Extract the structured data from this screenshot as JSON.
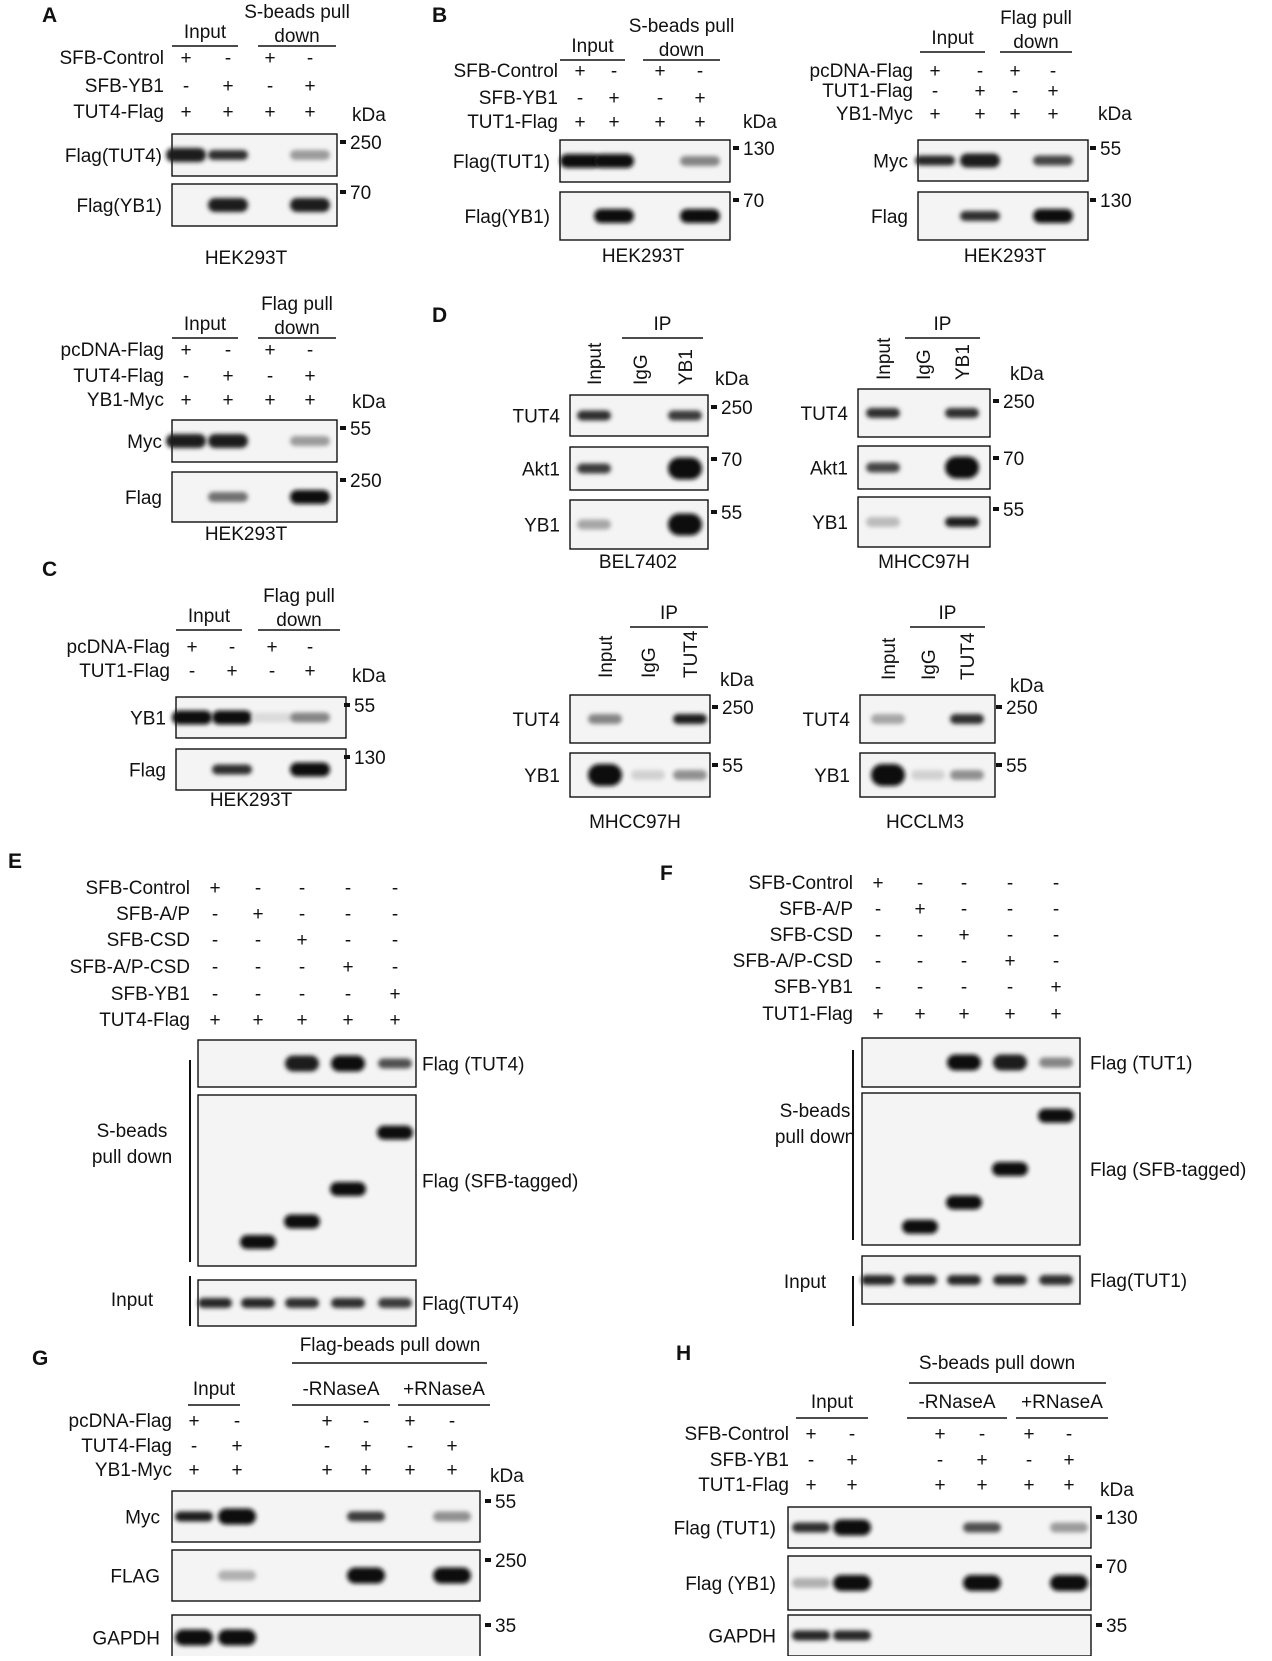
{
  "panels": [
    {
      "id": "A1",
      "letter": "A",
      "header_pos": "grouped",
      "groups": [
        "Input",
        "S-beads pull down"
      ],
      "rows": [
        {
          "label": "SFB-Control",
          "signs": [
            "+",
            "-",
            "+",
            "-"
          ]
        },
        {
          "label": "SFB-YB1",
          "signs": [
            "-",
            "+",
            "-",
            "+"
          ]
        },
        {
          "label": "TUT4-Flag",
          "signs": [
            "+",
            "+",
            "+",
            "+"
          ]
        }
      ],
      "kda": "kDa",
      "blots": [
        {
          "label": "Flag(TUT4)",
          "marker": "250",
          "bands": [
            0.95,
            0.85,
            0,
            0.35
          ]
        },
        {
          "label": "Flag(YB1)",
          "marker": "70",
          "bands": [
            0,
            0.95,
            0,
            0.95
          ]
        }
      ],
      "cell_line": "HEK293T"
    },
    {
      "id": "B1",
      "letter": "B",
      "header_pos": "grouped",
      "groups": [
        "Input",
        "S-beads pull down"
      ],
      "rows": [
        {
          "label": "SFB-Control",
          "signs": [
            "+",
            "-",
            "+",
            "-"
          ]
        },
        {
          "label": "SFB-YB1",
          "signs": [
            "-",
            "+",
            "-",
            "+"
          ]
        },
        {
          "label": "TUT1-Flag",
          "signs": [
            "+",
            "+",
            "+",
            "+"
          ]
        }
      ],
      "kda": "kDa",
      "blots": [
        {
          "label": "Flag(TUT1)",
          "marker": "130",
          "bands": [
            1,
            1,
            0,
            0.45
          ]
        },
        {
          "label": "Flag(YB1)",
          "marker": "70",
          "bands": [
            0,
            1,
            0,
            1
          ]
        }
      ],
      "cell_line": "HEK293T"
    },
    {
      "id": "B2",
      "letter": "",
      "header_pos": "grouped",
      "groups": [
        "Input",
        "Flag pull down"
      ],
      "rows": [
        {
          "label": "pcDNA-Flag",
          "signs": [
            "+",
            "-",
            "+",
            "-"
          ]
        },
        {
          "label": "TUT1-Flag",
          "signs": [
            "-",
            "+",
            "-",
            "+"
          ]
        },
        {
          "label": "YB1-Myc",
          "signs": [
            "+",
            "+",
            "+",
            "+"
          ]
        }
      ],
      "kda": "kDa",
      "blots": [
        {
          "label": "Myc",
          "marker": "55",
          "bands": [
            0.9,
            0.95,
            0,
            0.75
          ]
        },
        {
          "label": "Flag",
          "marker": "130",
          "bands": [
            0,
            0.85,
            0,
            1
          ]
        }
      ],
      "cell_line": "HEK293T"
    },
    {
      "id": "A2",
      "letter": "",
      "header_pos": "grouped",
      "groups": [
        "Input",
        "Flag pull down"
      ],
      "rows": [
        {
          "label": "pcDNA-Flag",
          "signs": [
            "+",
            "-",
            "+",
            "-"
          ]
        },
        {
          "label": "TUT4-Flag",
          "signs": [
            "-",
            "+",
            "-",
            "+"
          ]
        },
        {
          "label": "YB1-Myc",
          "signs": [
            "+",
            "+",
            "+",
            "+"
          ]
        }
      ],
      "kda": "kDa",
      "blots": [
        {
          "label": "Myc",
          "marker": "55",
          "bands": [
            0.95,
            0.95,
            0,
            0.35
          ]
        },
        {
          "label": "Flag",
          "marker": "250",
          "bands": [
            0,
            0.55,
            0,
            1
          ]
        }
      ],
      "cell_line": "HEK293T"
    },
    {
      "id": "C",
      "letter": "C",
      "header_pos": "grouped",
      "groups": [
        "Input",
        "Flag pull down"
      ],
      "rows": [
        {
          "label": "pcDNA-Flag",
          "signs": [
            "+",
            "-",
            "+",
            "-"
          ]
        },
        {
          "label": "TUT1-Flag",
          "signs": [
            "-",
            "+",
            "-",
            "+"
          ]
        }
      ],
      "kda": "kDa",
      "blots": [
        {
          "label": "YB1",
          "marker": "55",
          "bands": [
            1,
            1,
            0.05,
            0.45
          ]
        },
        {
          "label": "Flag",
          "marker": "130",
          "bands": [
            0,
            0.85,
            0,
            1
          ]
        }
      ],
      "cell_line": "HEK293T"
    },
    {
      "id": "D1",
      "letter": "D",
      "header_pos": "ip",
      "ip_label": "IP",
      "lanes": [
        "Input",
        "IgG",
        "YB1"
      ],
      "kda": "kDa",
      "blots": [
        {
          "label": "TUT4",
          "marker": "250",
          "bands": [
            0.85,
            0,
            0.8
          ]
        },
        {
          "label": "Akt1",
          "marker": "70",
          "bands": [
            0.8,
            0,
            1
          ]
        },
        {
          "label": "YB1",
          "marker": "55",
          "bands": [
            0.3,
            0,
            1
          ]
        }
      ],
      "cell_line": "BEL7402"
    },
    {
      "id": "D2",
      "letter": "",
      "header_pos": "ip",
      "ip_label": "IP",
      "lanes": [
        "Input",
        "IgG",
        "YB1"
      ],
      "kda": "kDa",
      "blots": [
        {
          "label": "TUT4",
          "marker": "250",
          "bands": [
            0.85,
            0,
            0.85
          ]
        },
        {
          "label": "Akt1",
          "marker": "70",
          "bands": [
            0.75,
            0,
            1
          ]
        },
        {
          "label": "YB1",
          "marker": "55",
          "bands": [
            0.2,
            0,
            0.95
          ]
        }
      ],
      "cell_line": "MHCC97H"
    },
    {
      "id": "D3",
      "letter": "",
      "header_pos": "ip",
      "ip_label": "IP",
      "lanes": [
        "Input",
        "IgG",
        "TUT4"
      ],
      "kda": "kDa",
      "blots": [
        {
          "label": "TUT4",
          "marker": "250",
          "bands": [
            0.45,
            0,
            0.95
          ]
        },
        {
          "label": "YB1",
          "marker": "55",
          "bands": [
            1,
            0.1,
            0.4
          ]
        }
      ],
      "cell_line": "MHCC97H"
    },
    {
      "id": "D4",
      "letter": "",
      "header_pos": "ip",
      "ip_label": "IP",
      "lanes": [
        "Input",
        "IgG",
        "TUT4"
      ],
      "kda": "kDa",
      "blots": [
        {
          "label": "TUT4",
          "marker": "250",
          "bands": [
            0.3,
            0,
            0.85
          ]
        },
        {
          "label": "YB1",
          "marker": "55",
          "bands": [
            1,
            0.1,
            0.4
          ]
        }
      ],
      "cell_line": "HCCLM3"
    },
    {
      "id": "E",
      "letter": "E",
      "rows": [
        {
          "label": "SFB-Control",
          "signs": [
            "+",
            "-",
            "-",
            "-",
            "-"
          ]
        },
        {
          "label": "SFB-A/P",
          "signs": [
            "-",
            "+",
            "-",
            "-",
            "-"
          ]
        },
        {
          "label": "SFB-CSD",
          "signs": [
            "-",
            "-",
            "+",
            "-",
            "-"
          ]
        },
        {
          "label": "SFB-A/P-CSD",
          "signs": [
            "-",
            "-",
            "-",
            "+",
            "-"
          ]
        },
        {
          "label": "SFB-YB1",
          "signs": [
            "-",
            "-",
            "-",
            "-",
            "+"
          ]
        },
        {
          "label": "TUT4-Flag",
          "signs": [
            "+",
            "+",
            "+",
            "+",
            "+"
          ]
        }
      ],
      "pulldown_label": [
        "S-beads",
        "pull down"
      ],
      "input_label": "Input",
      "blots": [
        {
          "label": "Flag (TUT4)",
          "bands": [
            0,
            0,
            0.95,
            1,
            0.7
          ]
        },
        {
          "label": "Flag (SFB-tagged)",
          "ladder": [
            0.86,
            0.74,
            0.55,
            0.22
          ]
        },
        {
          "label": "Flag(TUT4)",
          "bands": [
            0.9,
            0.9,
            0.85,
            0.85,
            0.8
          ]
        }
      ]
    },
    {
      "id": "F",
      "letter": "F",
      "rows": [
        {
          "label": "SFB-Control",
          "signs": [
            "+",
            "-",
            "-",
            "-",
            "-"
          ]
        },
        {
          "label": "SFB-A/P",
          "signs": [
            "-",
            "+",
            "-",
            "-",
            "-"
          ]
        },
        {
          "label": "SFB-CSD",
          "signs": [
            "-",
            "-",
            "+",
            "-",
            "-"
          ]
        },
        {
          "label": "SFB-A/P-CSD",
          "signs": [
            "-",
            "-",
            "-",
            "+",
            "-"
          ]
        },
        {
          "label": "SFB-YB1",
          "signs": [
            "-",
            "-",
            "-",
            "-",
            "+"
          ]
        },
        {
          "label": "TUT1-Flag",
          "signs": [
            "+",
            "+",
            "+",
            "+",
            "+"
          ]
        }
      ],
      "pulldown_label": [
        "S-beads",
        "pull down"
      ],
      "input_label": "Input",
      "blots": [
        {
          "label": "Flag (TUT1)",
          "bands": [
            0,
            0,
            1,
            0.95,
            0.45
          ]
        },
        {
          "label": "Flag (SFB-tagged)",
          "ladder": [
            0.88,
            0.72,
            0.5,
            0.15
          ]
        },
        {
          "label": "Flag(TUT1)",
          "bands": [
            0.9,
            0.9,
            0.9,
            0.9,
            0.85
          ]
        }
      ]
    },
    {
      "id": "G",
      "letter": "G",
      "top_label": "Flag-beads pull down",
      "groups": [
        "Input",
        "-RNaseA",
        "+RNaseA"
      ],
      "rows": [
        {
          "label": "pcDNA-Flag",
          "signs": [
            "+",
            "-",
            "+",
            "-",
            "+",
            "-"
          ]
        },
        {
          "label": "TUT4-Flag",
          "signs": [
            "-",
            "+",
            "-",
            "+",
            "-",
            "+"
          ]
        },
        {
          "label": "YB1-Myc",
          "signs": [
            "+",
            "+",
            "+",
            "+",
            "+",
            "+"
          ]
        }
      ],
      "kda": "kDa",
      "blots": [
        {
          "label": "Myc",
          "marker": "55",
          "bands": [
            0.95,
            1,
            0,
            0.8,
            0,
            0.4
          ]
        },
        {
          "label": "FLAG",
          "marker": "250",
          "bands": [
            0,
            0.25,
            0,
            1,
            0,
            1
          ]
        },
        {
          "label": "GAPDH",
          "marker": "35",
          "bands": [
            1,
            1,
            0,
            0,
            0,
            0
          ]
        }
      ]
    },
    {
      "id": "H",
      "letter": "H",
      "top_label": "S-beads pull down",
      "groups": [
        "Input",
        "-RNaseA",
        "+RNaseA"
      ],
      "rows": [
        {
          "label": "SFB-Control",
          "signs": [
            "+",
            "-",
            "+",
            "-",
            "+",
            "-"
          ]
        },
        {
          "label": "SFB-YB1",
          "signs": [
            "-",
            "+",
            "-",
            "+",
            "-",
            "+"
          ]
        },
        {
          "label": "TUT1-Flag",
          "signs": [
            "+",
            "+",
            "+",
            "+",
            "+",
            "+"
          ]
        }
      ],
      "kda": "kDa",
      "blots": [
        {
          "label": "Flag (TUT1)",
          "marker": "130",
          "bands": [
            0.85,
            1,
            0,
            0.7,
            0,
            0.35
          ]
        },
        {
          "label": "Flag (YB1)",
          "marker": "70",
          "bands": [
            0.25,
            1,
            0,
            1,
            0,
            1
          ]
        },
        {
          "label": "GAPDH",
          "marker": "35",
          "bands": [
            0.9,
            0.9,
            0,
            0,
            0,
            0
          ]
        }
      ]
    }
  ]
}
